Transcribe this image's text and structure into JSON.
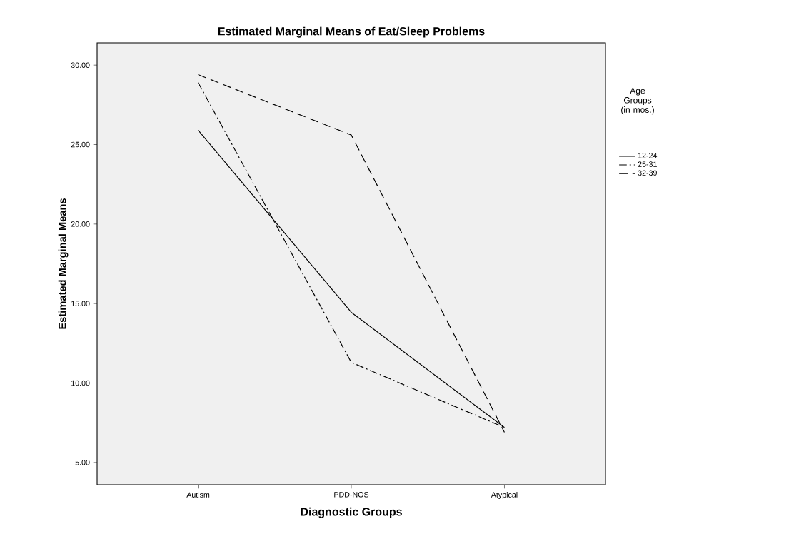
{
  "chart_data": {
    "type": "line",
    "title": "Estimated Marginal Means of Eat/Sleep Problems",
    "xlabel": "Diagnostic Groups",
    "ylabel": "Estimated Marginal Means",
    "legend_title": "Age Groups (in mos.)",
    "categories": [
      "Autism",
      "PDD-NOS",
      "Atypical"
    ],
    "series": [
      {
        "name": "12-24",
        "color": "#000000",
        "line_style": "solid",
        "values": [
          25.9,
          14.45,
          7.2
        ]
      },
      {
        "name": "25-31",
        "color": "#000000",
        "line_style": "dashdot",
        "values": [
          28.9,
          11.3,
          7.2
        ]
      },
      {
        "name": "32-39",
        "color": "#000000",
        "line_style": "dashed",
        "values": [
          29.4,
          25.6,
          6.9
        ]
      }
    ],
    "ylim": [
      3.6,
      31.4
    ],
    "yticks": [
      {
        "value": 5,
        "label": "5.00"
      },
      {
        "value": 10,
        "label": "10.00"
      },
      {
        "value": 15,
        "label": "15.00"
      },
      {
        "value": 20,
        "label": "20.00"
      },
      {
        "value": 25,
        "label": "25.00"
      },
      {
        "value": 30,
        "label": "30.00"
      }
    ],
    "legend": "right",
    "marker": "none"
  }
}
